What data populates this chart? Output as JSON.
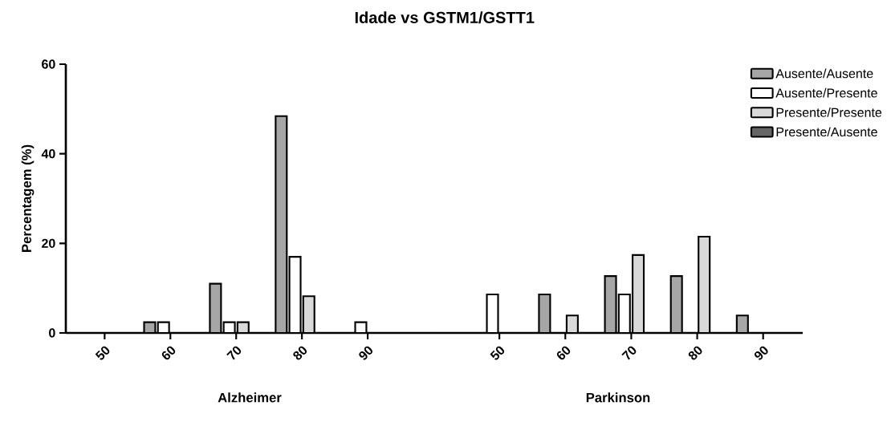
{
  "chart_data": [
    {
      "type": "bar",
      "title": "Idade vs GSTM1/GSTT1",
      "xlabel": "Alzheimer",
      "ylabel": "Percentagem (%)",
      "categories": [
        "50",
        "60",
        "70",
        "80",
        "90"
      ],
      "series": [
        {
          "color": "#000000",
          "values": [
            null,
            2.4,
            11,
            48.4,
            null
          ]
        },
        {
          "color": "#000000",
          "values": [
            null,
            2.4,
            2.4,
            17,
            2.4
          ]
        },
        {
          "color": "#000000",
          "values": [
            null,
            null,
            2.4,
            8.2,
            null
          ]
        }
      ],
      "ylim": [
        0,
        60
      ],
      "yticks": [
        0,
        20,
        40,
        60
      ],
      "legend": false
    },
    {
      "type": "bar",
      "xlabel": "Parkinson",
      "categories": [
        "50",
        "60",
        "70",
        "80",
        "90"
      ],
      "series": [
        {
          "name": "Ausente/Ausente",
          "color": "#000000",
          "values": [
            null,
            8.6,
            12.7,
            12.7,
            3.9
          ]
        },
        {
          "name": "Ausente/Presente",
          "color": "#000000",
          "values": [
            8.6,
            null,
            8.6,
            null,
            null
          ]
        },
        {
          "name": "Presente/Presente",
          "color": "#000000",
          "values": [
            null,
            3.9,
            17.4,
            21.5,
            null
          ]
        },
        {
          "name": "Presente/Ausente",
          "color": "#000000",
          "values": [
            null,
            null,
            null,
            null,
            null
          ]
        }
      ],
      "ylim": [
        0,
        60
      ],
      "tick_labels": "x",
      "legend": "top right"
    }
  ]
}
